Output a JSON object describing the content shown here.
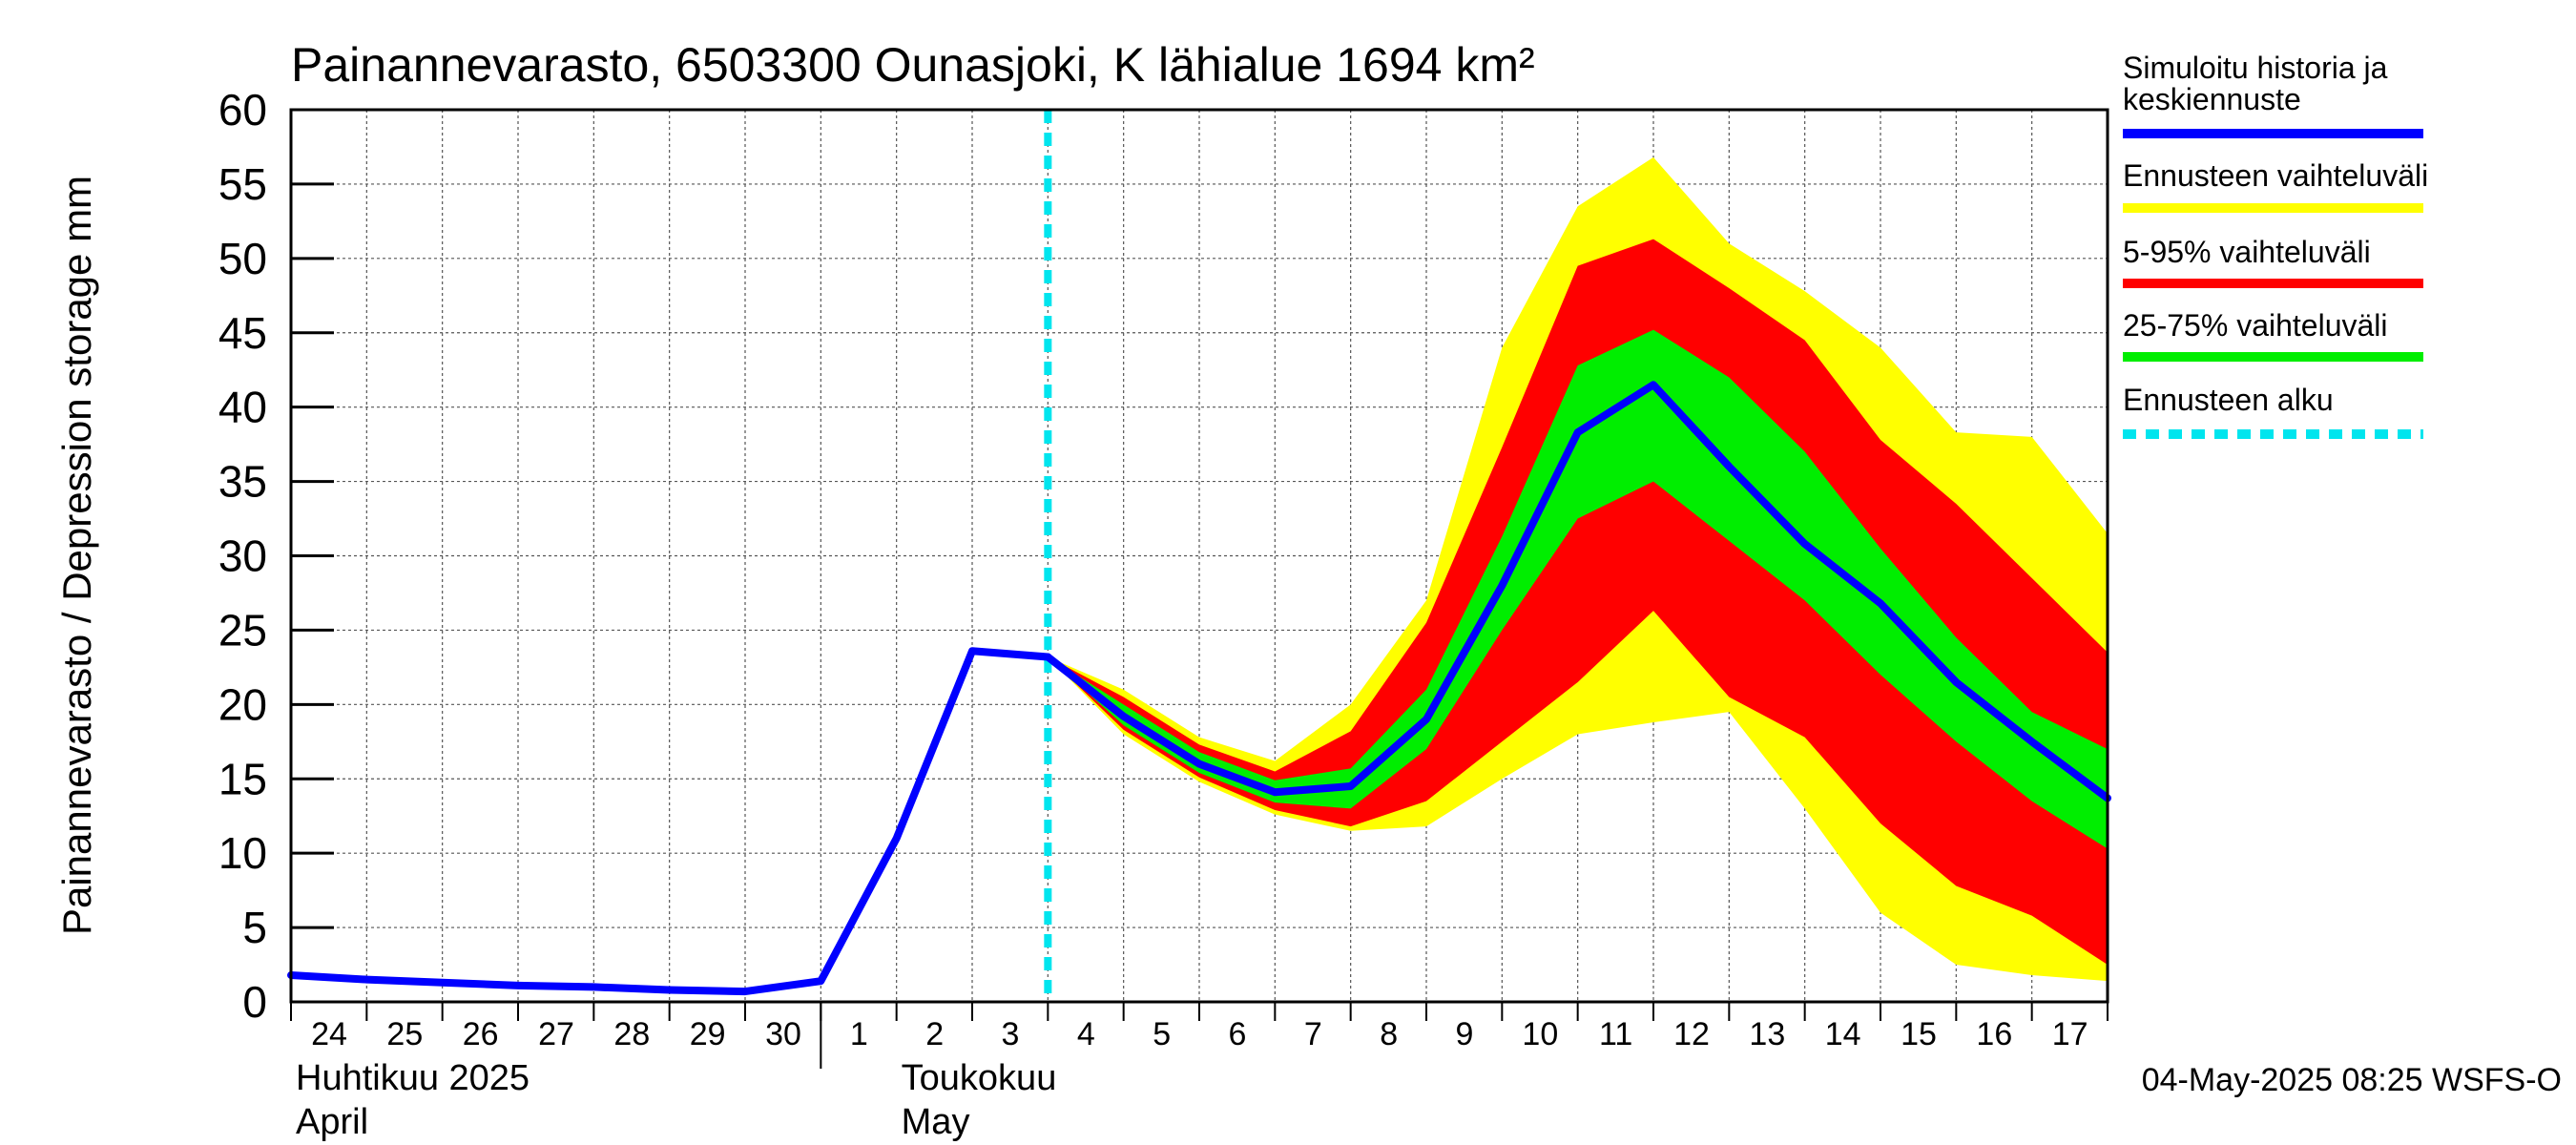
{
  "chart_data": {
    "type": "area",
    "title": "Painannevarasto, 6503300 Ounasjoki, K lähialue 1694 km²",
    "ylabel": "Painannevarasto / Depression storage    mm",
    "ylim": [
      0,
      60
    ],
    "yticks": [
      0,
      5,
      10,
      15,
      20,
      25,
      30,
      35,
      40,
      45,
      50,
      55,
      60
    ],
    "xlim": [
      0,
      24
    ],
    "grid": true,
    "day_labels": [
      "24",
      "25",
      "26",
      "27",
      "28",
      "29",
      "30",
      "1",
      "2",
      "3",
      "4",
      "5",
      "6",
      "7",
      "8",
      "9",
      "10",
      "11",
      "12",
      "13",
      "14",
      "15",
      "16",
      "17"
    ],
    "month_labels": [
      {
        "line1": "Huhtikuu  2025",
        "line2": "April",
        "day_index": 0
      },
      {
        "line1": "Toukokuu",
        "line2": "May",
        "day_index": 8
      }
    ],
    "forecast_start_x": 10,
    "history": {
      "x": [
        0,
        1,
        2,
        3,
        4,
        5,
        6,
        7,
        8,
        9,
        10
      ],
      "values": [
        1.8,
        1.5,
        1.3,
        1.1,
        1.0,
        0.8,
        0.7,
        1.4,
        11.0,
        23.6,
        23.2
      ]
    },
    "forecast": {
      "x": [
        10,
        11,
        12,
        13,
        14,
        15,
        16,
        17,
        18,
        19,
        20,
        21,
        22,
        23,
        24
      ],
      "median": [
        23.2,
        19.2,
        16.0,
        14.1,
        14.5,
        19.0,
        28.0,
        38.3,
        41.5,
        36.0,
        30.8,
        26.8,
        21.5,
        17.5,
        13.7
      ],
      "band_min_max": {
        "low": [
          23.2,
          18.0,
          14.8,
          12.6,
          11.5,
          11.8,
          15.0,
          18.0,
          18.8,
          19.5,
          13.0,
          6.0,
          2.5,
          1.8,
          1.4
        ],
        "high": [
          23.2,
          21.0,
          17.8,
          16.2,
          20.0,
          27.0,
          44.0,
          53.5,
          56.8,
          51.0,
          47.8,
          44.0,
          38.3,
          38.0,
          31.5
        ]
      },
      "band_5_95": {
        "low": [
          23.2,
          18.3,
          15.1,
          12.9,
          11.8,
          13.5,
          17.5,
          21.5,
          26.3,
          20.5,
          17.8,
          12.0,
          7.8,
          5.8,
          2.5
        ],
        "high": [
          23.2,
          20.5,
          17.3,
          15.5,
          18.2,
          25.5,
          37.3,
          49.5,
          51.3,
          48.0,
          44.5,
          37.8,
          33.5,
          28.5,
          23.5
        ]
      },
      "band_25_75": {
        "low": [
          23.2,
          18.6,
          15.4,
          13.4,
          13.0,
          17.0,
          25.0,
          32.5,
          35.0,
          31.0,
          27.0,
          22.0,
          17.5,
          13.5,
          10.3
        ],
        "high": [
          23.2,
          20.0,
          16.8,
          14.9,
          15.7,
          21.0,
          31.3,
          42.8,
          45.2,
          42.0,
          37.0,
          30.5,
          24.5,
          19.5,
          17.0
        ]
      }
    },
    "colors": {
      "history": "#0000ff",
      "min_max": "#ffff00",
      "p5_95": "#ff0000",
      "p25_75": "#00ee00",
      "forecast_start": "#00e5ee"
    },
    "legend": [
      {
        "label": "Simuloitu historia ja",
        "label2": "keskiennuste",
        "key": "history",
        "style": "solid"
      },
      {
        "label": "Ennusteen vaihteluväli",
        "key": "min_max",
        "style": "solid"
      },
      {
        "label": "5-95% vaihteluväli",
        "key": "p5_95",
        "style": "solid"
      },
      {
        "label": "25-75% vaihteluväli",
        "key": "p25_75",
        "style": "solid"
      },
      {
        "label": "Ennusteen alku",
        "key": "forecast_start",
        "style": "dashed"
      }
    ],
    "footer": "04-May-2025 08:25 WSFS-O"
  }
}
